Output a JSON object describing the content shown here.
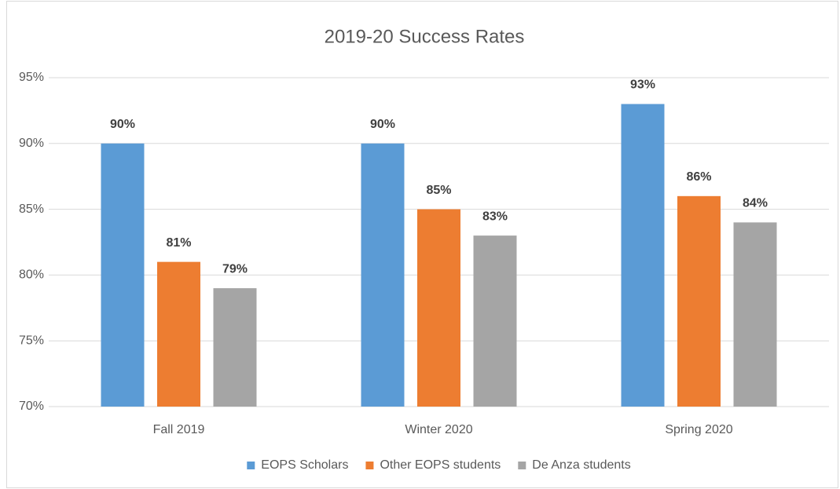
{
  "chart_data": {
    "type": "bar",
    "title": "2019-20 Success Rates",
    "categories": [
      "Fall 2019",
      "Winter 2020",
      "Spring 2020"
    ],
    "series": [
      {
        "name": "EOPS Scholars",
        "color": "#5b9bd5",
        "values": [
          90,
          90,
          93
        ],
        "value_labels": [
          "90%",
          "90%",
          "93%"
        ]
      },
      {
        "name": "Other EOPS students",
        "color": "#ed7d31",
        "values": [
          81,
          85,
          86
        ],
        "value_labels": [
          "81%",
          "85%",
          "86%"
        ]
      },
      {
        "name": "De Anza students",
        "color": "#a5a5a5",
        "values": [
          79,
          83,
          84
        ],
        "value_labels": [
          "79%",
          "83%",
          "84%"
        ]
      }
    ],
    "ylim": [
      70,
      95
    ],
    "yticks": [
      {
        "value": 70,
        "label": "70%"
      },
      {
        "value": 75,
        "label": "75%"
      },
      {
        "value": 80,
        "label": "80%"
      },
      {
        "value": 85,
        "label": "85%"
      },
      {
        "value": 90,
        "label": "90%"
      },
      {
        "value": 95,
        "label": "95%"
      }
    ],
    "grid": true,
    "legend": "bottom"
  }
}
